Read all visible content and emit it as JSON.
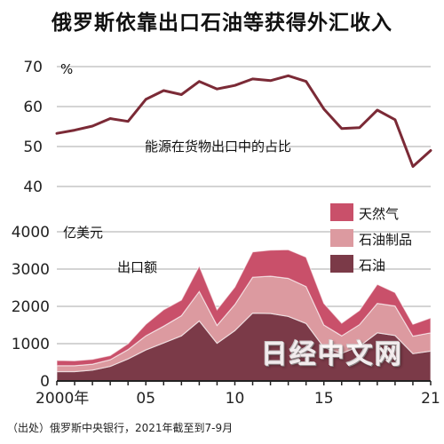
{
  "title": "俄罗斯依靠出口石油等获得外汇收入",
  "source": "（出处）俄罗斯中央银行，2021年截至到7-9月",
  "watermark": "日经中文网",
  "colors": {
    "line": "#7b2a36",
    "natural_gas": "#c9506a",
    "petroleum_products": "#dc9aa0",
    "crude_oil": "#7b3a48",
    "grid": "#aaaaaa"
  },
  "chart_data": [
    {
      "type": "line",
      "unit": "%",
      "label": "能源在货物出口中的占比",
      "ylim": [
        40,
        70
      ],
      "yticks": [
        40,
        50,
        60,
        70
      ],
      "x": [
        2000,
        2001,
        2002,
        2003,
        2004,
        2005,
        2006,
        2007,
        2008,
        2009,
        2010,
        2011,
        2012,
        2013,
        2014,
        2015,
        2016,
        2017,
        2018,
        2019,
        2020,
        2021
      ],
      "values": [
        53.3,
        54.1,
        55.1,
        57.0,
        56.3,
        61.8,
        64.0,
        63.0,
        66.3,
        64.4,
        65.3,
        66.9,
        66.5,
        67.7,
        66.3,
        59.4,
        54.5,
        54.7,
        59.1,
        56.7,
        45.0,
        49.0
      ]
    },
    {
      "type": "area",
      "stacked": true,
      "unit": "亿美元",
      "label": "出口额",
      "ylim": [
        0,
        4000
      ],
      "yticks": [
        0,
        1000,
        2000,
        3000,
        4000
      ],
      "x": [
        2000,
        2001,
        2002,
        2003,
        2004,
        2005,
        2006,
        2007,
        2008,
        2009,
        2010,
        2011,
        2012,
        2013,
        2014,
        2015,
        2016,
        2017,
        2018,
        2019,
        2020,
        2021
      ],
      "xtick_labels": [
        {
          "x": 2000,
          "label": "2000年"
        },
        {
          "x": 2005,
          "label": "05"
        },
        {
          "x": 2010,
          "label": "10"
        },
        {
          "x": 2015,
          "label": "15"
        },
        {
          "x": 2021,
          "label": "21"
        }
      ],
      "legend_position": "top-right",
      "series": [
        {
          "name": "石油",
          "values": [
            250,
            250,
            290,
            390,
            590,
            830,
            1020,
            1210,
            1610,
            1010,
            1350,
            1820,
            1810,
            1730,
            1540,
            900,
            740,
            930,
            1290,
            1220,
            730,
            800
          ]
        },
        {
          "name": "石油制品",
          "values": [
            160,
            160,
            160,
            180,
            250,
            380,
            450,
            540,
            790,
            480,
            700,
            960,
            1000,
            1020,
            990,
            600,
            470,
            580,
            790,
            790,
            470,
            490
          ]
        },
        {
          "name": "天然气",
          "values": [
            140,
            130,
            130,
            110,
            160,
            310,
            440,
            420,
            680,
            420,
            470,
            680,
            700,
            770,
            790,
            580,
            340,
            380,
            510,
            360,
            320,
            400
          ]
        }
      ]
    }
  ]
}
